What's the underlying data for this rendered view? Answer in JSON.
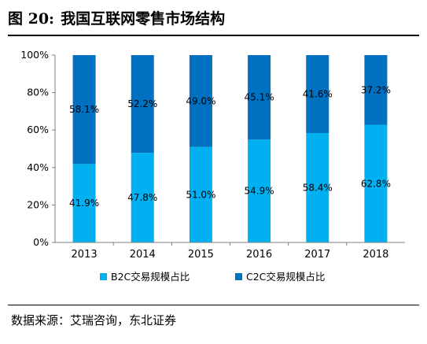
{
  "figure": {
    "number": "图 20:",
    "title": "我国互联网零售市场结构",
    "source": "数据来源：艾瑞咨询，东北证券"
  },
  "chart_data": {
    "type": "bar",
    "stacked": true,
    "categories": [
      "2013",
      "2014",
      "2015",
      "2016",
      "2017",
      "2018"
    ],
    "series": [
      {
        "name": "B2C交易规模占比",
        "color": "#00b0f0",
        "values": [
          41.9,
          47.8,
          51.0,
          54.9,
          58.4,
          62.8
        ],
        "labels": [
          "41.9%",
          "47.8%",
          "51.0%",
          "54.9%",
          "58.4%",
          "62.8%"
        ]
      },
      {
        "name": "C2C交易规模占比",
        "color": "#0070c0",
        "values": [
          58.1,
          52.2,
          49.0,
          45.1,
          41.6,
          37.2
        ],
        "labels": [
          "58.1%",
          "52.2%",
          "49.0%",
          "45.1%",
          "41.6%",
          "37.2%"
        ]
      }
    ],
    "yticks": [
      "0%",
      "20%",
      "40%",
      "60%",
      "80%",
      "100%"
    ],
    "ylim": [
      0,
      100
    ],
    "legend_position": "bottom",
    "grid": false
  }
}
